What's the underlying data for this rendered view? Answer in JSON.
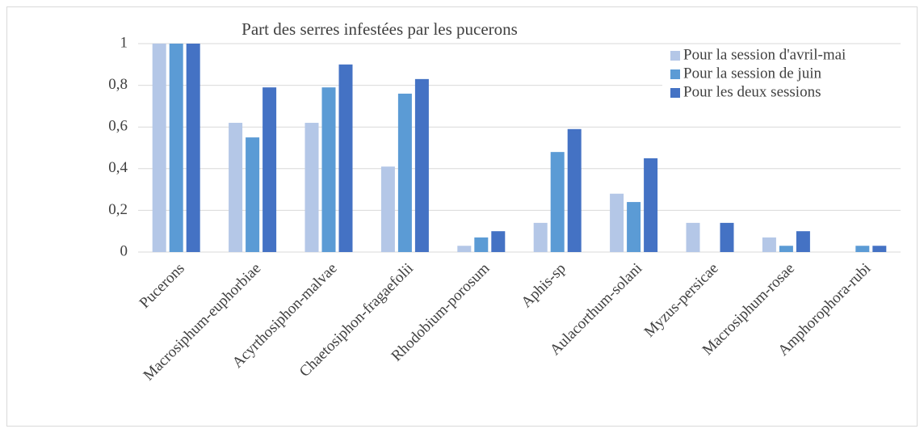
{
  "chart_data": {
    "type": "bar",
    "title": "Part des serres infestées par les pucerons",
    "categories": [
      "Pucerons",
      "Macrosiphum-euphorbiae",
      "Acyrthosiphon-malvae",
      "Chaetosiphon-fragaefolii",
      "Rhodobium-porosum",
      "Aphis-sp",
      "Aulacorthum-solani",
      "Myzus-persicae",
      "Macrosiphum-rosae",
      "Amphorophora-rubi"
    ],
    "series": [
      {
        "name": "Pour la session d'avril-mai",
        "color": "#b4c7e7",
        "values": [
          1,
          0.62,
          0.62,
          0.41,
          0.03,
          0.14,
          0.28,
          0.14,
          0.07,
          0
        ]
      },
      {
        "name": "Pour la session de juin",
        "color": "#5b9bd5",
        "values": [
          1,
          0.55,
          0.79,
          0.76,
          0.07,
          0.48,
          0.24,
          0,
          0.03,
          0.03
        ]
      },
      {
        "name": "Pour les deux sessions",
        "color": "#4472c4",
        "values": [
          1,
          0.79,
          0.9,
          0.83,
          0.1,
          0.59,
          0.45,
          0.14,
          0.1,
          0.03
        ]
      }
    ],
    "ylim": [
      0,
      1
    ],
    "yticks": [
      0,
      {
        "value": 0.2,
        "label": "0,2"
      },
      {
        "value": 0.4,
        "label": "0,4"
      },
      {
        "value": 0.6,
        "label": "0,6"
      },
      {
        "value": 0.8,
        "label": "0,8"
      },
      1
    ],
    "grid": true,
    "legend": "top-right"
  }
}
